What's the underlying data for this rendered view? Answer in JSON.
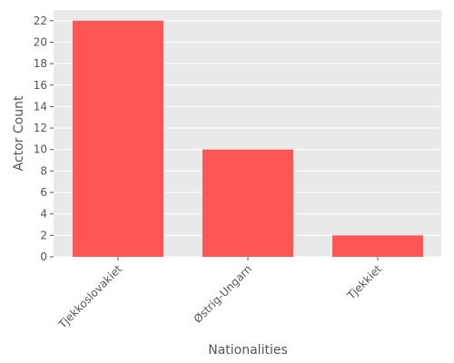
{
  "chart_data": {
    "type": "bar",
    "title": "",
    "xlabel": "Nationalities",
    "ylabel": "Actor Count",
    "categories": [
      "Tjekkoslovakiet",
      "Østrig-Ungarn",
      "Tjekkiet"
    ],
    "values": [
      22,
      10,
      2
    ],
    "ylim": [
      0,
      23
    ],
    "yticks": [
      0,
      2,
      4,
      6,
      8,
      10,
      12,
      14,
      16,
      18,
      20,
      22
    ],
    "grid": true,
    "legend": "none",
    "colors": {
      "bar": "#ff5555",
      "plot_background": "#e9e9e9",
      "grid": "#ffffff",
      "text": "#555555"
    }
  }
}
